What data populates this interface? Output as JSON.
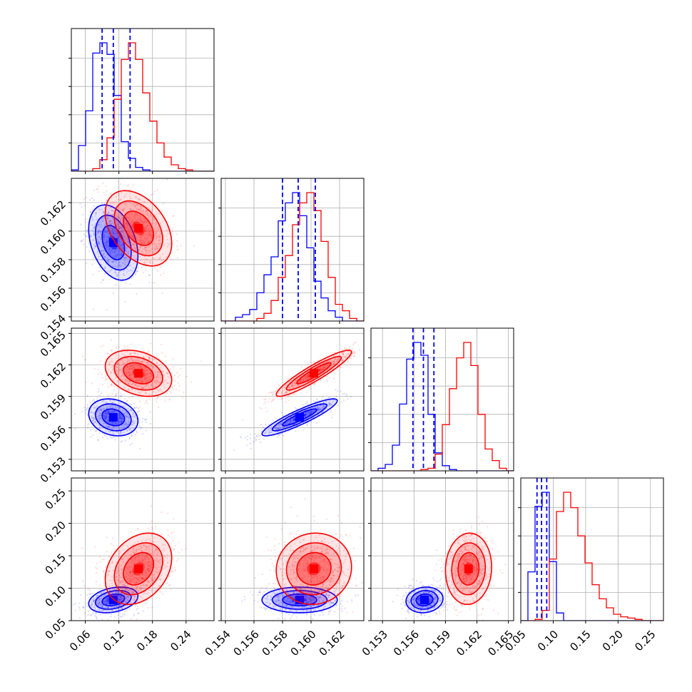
{
  "chart_data": {
    "type": "corner",
    "colors": {
      "a": "#0000ff",
      "b": "#ff0000"
    },
    "params": [
      {
        "range": [
          0.035,
          0.29
        ],
        "ticks": [
          "0.06",
          "0.12",
          "0.18",
          "0.24"
        ],
        "tick_values": [
          0.06,
          0.12,
          0.18,
          0.24
        ],
        "hist": {
          "edges_start": 0.035,
          "bin_width": 0.01275,
          "series": [
            {
              "id": "a",
              "counts": [
                0.01,
                0.2,
                0.47,
                0.92,
                1.0,
                0.91,
                0.59,
                0.23,
                0.1,
                0.03,
                0.01,
                0.0,
                0.0,
                0.0,
                0.0,
                0.0,
                0.0,
                0.0,
                0.0,
                0.0
              ]
            },
            {
              "id": "b",
              "counts": [
                0.0,
                0.0,
                0.0,
                0.02,
                0.09,
                0.26,
                0.56,
                0.87,
                1.0,
                0.87,
                0.61,
                0.39,
                0.22,
                0.11,
                0.05,
                0.02,
                0.01,
                0.0,
                0.0,
                0.0
              ]
            }
          ]
        },
        "quantiles": [
          0.09,
          0.11,
          0.14
        ]
      },
      {
        "range": [
          0.1537,
          0.1637
        ],
        "ticks": [
          "0.154",
          "0.156",
          "0.158",
          "0.160",
          "0.162"
        ],
        "tick_values": [
          0.154,
          0.156,
          0.158,
          0.16,
          0.162
        ],
        "hist": {
          "edges_start": 0.1537,
          "bin_width": 0.0005,
          "series": [
            {
              "id": "a",
              "counts": [
                0.0,
                0.0,
                0.03,
                0.05,
                0.09,
                0.22,
                0.36,
                0.5,
                0.78,
                0.92,
                1.0,
                0.82,
                0.57,
                0.31,
                0.18,
                0.08,
                0.03,
                0.0,
                0.0,
                0.0
              ]
            },
            {
              "id": "b",
              "counts": [
                0.0,
                0.0,
                0.0,
                0.0,
                0.0,
                0.02,
                0.06,
                0.16,
                0.34,
                0.51,
                0.75,
                0.92,
                1.0,
                0.86,
                0.62,
                0.34,
                0.13,
                0.08,
                0.02,
                0.0
              ]
            }
          ]
        },
        "quantiles": [
          0.158,
          0.1591,
          0.1603
        ]
      },
      {
        "range": [
          0.1519,
          0.1655
        ],
        "ticks": [
          "0.153",
          "0.156",
          "0.159",
          "0.162",
          "0.165"
        ],
        "tick_values": [
          0.153,
          0.156,
          0.159,
          0.162,
          0.165
        ],
        "hist": {
          "edges_start": 0.1519,
          "bin_width": 0.00068,
          "series": [
            {
              "id": "a",
              "counts": [
                0.0,
                0.02,
                0.05,
                0.2,
                0.52,
                0.87,
                1.0,
                0.9,
                0.44,
                0.14,
                0.04,
                0.01,
                0.0,
                0.0,
                0.0,
                0.0,
                0.0,
                0.0,
                0.0,
                0.0
              ]
            },
            {
              "id": "b",
              "counts": [
                0.0,
                0.0,
                0.0,
                0.0,
                0.0,
                0.0,
                0.0,
                0.01,
                0.02,
                0.13,
                0.36,
                0.64,
                0.88,
                1.0,
                0.82,
                0.44,
                0.17,
                0.08,
                0.02,
                0.0
              ]
            }
          ]
        },
        "quantiles": [
          0.1559,
          0.1569,
          0.1579
        ]
      },
      {
        "range": [
          0.05,
          0.27
        ],
        "ticks": [
          "0.05",
          "0.10",
          "0.15",
          "0.20",
          "0.25"
        ],
        "tick_values": [
          0.05,
          0.1,
          0.15,
          0.2,
          0.25
        ],
        "tick_labels_y": [
          "0.05",
          "0.10",
          "0.15",
          "0.20",
          "0.25"
        ],
        "hist": {
          "edges_start": 0.05,
          "bin_width": 0.011,
          "series": [
            {
              "id": "a",
              "counts": [
                0.0,
                0.38,
                0.89,
                1.0,
                0.46,
                0.06,
                0.0,
                0.0,
                0.0,
                0.0,
                0.0,
                0.0,
                0.0,
                0.0,
                0.0,
                0.0,
                0.0,
                0.0,
                0.0,
                0.0
              ]
            },
            {
              "id": "b",
              "counts": [
                0.0,
                0.0,
                0.01,
                0.08,
                0.48,
                0.85,
                1.0,
                0.88,
                0.66,
                0.45,
                0.28,
                0.17,
                0.1,
                0.05,
                0.03,
                0.02,
                0.01,
                0.0,
                0.0,
                0.0
              ]
            }
          ]
        },
        "quantiles": [
          0.075,
          0.082,
          0.09
        ]
      }
    ],
    "hist_yticks": [
      0.22,
      0.44,
      0.66,
      0.88
    ],
    "pairs": [
      {
        "row": 1,
        "col": 0,
        "series": [
          {
            "id": "a",
            "mx": 0.11,
            "my": 0.1592,
            "sx": 0.02,
            "sy": 0.0012,
            "rho": -0.35
          },
          {
            "id": "b",
            "mx": 0.155,
            "my": 0.1602,
            "sx": 0.027,
            "sy": 0.0012,
            "rho": -0.4
          }
        ]
      },
      {
        "row": 2,
        "col": 0,
        "series": [
          {
            "id": "a",
            "mx": 0.11,
            "my": 0.157,
            "sx": 0.02,
            "sy": 0.0008,
            "rho": -0.2
          },
          {
            "id": "b",
            "mx": 0.155,
            "my": 0.1612,
            "sx": 0.027,
            "sy": 0.001,
            "rho": -0.3
          }
        ]
      },
      {
        "row": 2,
        "col": 1,
        "series": [
          {
            "id": "a",
            "mx": 0.1592,
            "my": 0.157,
            "sx": 0.0012,
            "sy": 0.0008,
            "rho": 0.9
          },
          {
            "id": "b",
            "mx": 0.1602,
            "my": 0.1612,
            "sx": 0.0012,
            "sy": 0.001,
            "rho": 0.92
          }
        ]
      },
      {
        "row": 3,
        "col": 0,
        "series": [
          {
            "id": "a",
            "mx": 0.11,
            "my": 0.082,
            "sx": 0.02,
            "sy": 0.009,
            "rho": 0.3
          },
          {
            "id": "b",
            "mx": 0.155,
            "my": 0.13,
            "sx": 0.027,
            "sy": 0.025,
            "rho": 0.3
          }
        ]
      },
      {
        "row": 3,
        "col": 1,
        "series": [
          {
            "id": "a",
            "mx": 0.1592,
            "my": 0.082,
            "sx": 0.0012,
            "sy": 0.009,
            "rho": 0.0
          },
          {
            "id": "b",
            "mx": 0.1602,
            "my": 0.13,
            "sx": 0.0012,
            "sy": 0.025,
            "rho": 0.05
          }
        ]
      },
      {
        "row": 3,
        "col": 2,
        "series": [
          {
            "id": "a",
            "mx": 0.157,
            "my": 0.082,
            "sx": 0.0008,
            "sy": 0.009,
            "rho": 0.1
          },
          {
            "id": "b",
            "mx": 0.1612,
            "my": 0.13,
            "sx": 0.001,
            "sy": 0.025,
            "rho": 0.05
          }
        ]
      }
    ],
    "contour_levels": [
      0.4,
      1.0,
      1.6,
      2.2
    ],
    "grid": true
  }
}
